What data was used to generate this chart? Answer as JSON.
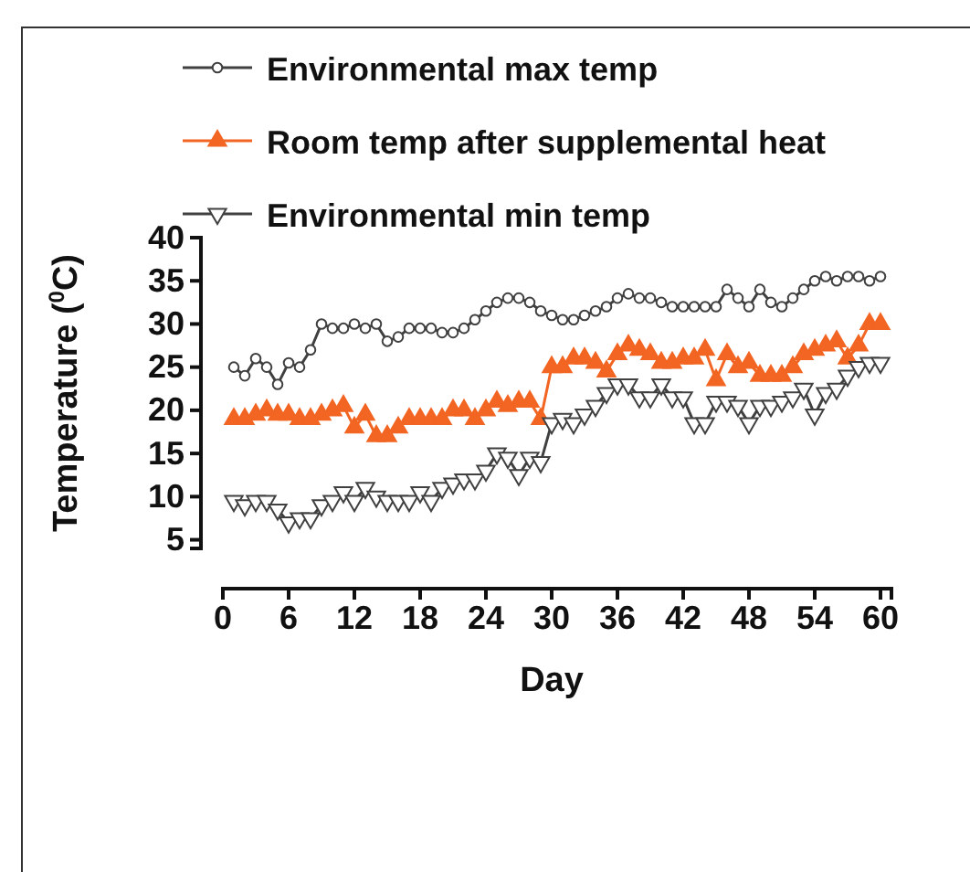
{
  "chart_data": {
    "type": "line",
    "xlabel": "Day",
    "ylabel": "Temperature ($^{0}$C)",
    "xlim": [
      0,
      61
    ],
    "xticks": [
      0,
      6,
      12,
      18,
      24,
      30,
      36,
      42,
      48,
      54,
      60
    ],
    "ylim": [
      4,
      40
    ],
    "yticks": [
      5,
      10,
      15,
      20,
      25,
      30,
      35,
      40
    ],
    "x": [
      1,
      2,
      3,
      4,
      5,
      6,
      7,
      8,
      9,
      10,
      11,
      12,
      13,
      14,
      15,
      16,
      17,
      18,
      19,
      20,
      21,
      22,
      23,
      24,
      25,
      26,
      27,
      28,
      29,
      30,
      31,
      32,
      33,
      34,
      35,
      36,
      37,
      38,
      39,
      40,
      41,
      42,
      43,
      44,
      45,
      46,
      47,
      48,
      49,
      50,
      51,
      52,
      53,
      54,
      55,
      56,
      57,
      58,
      59,
      60
    ],
    "legend": "top",
    "grid": false,
    "series": [
      {
        "name": "Environmental max temp",
        "color": "#404040",
        "marker": "circle",
        "values": [
          25,
          24,
          26,
          25,
          23,
          25.5,
          25,
          27,
          30,
          29.5,
          29.5,
          30,
          29.5,
          30,
          28,
          28.5,
          29.5,
          29.5,
          29.5,
          29,
          29,
          29.5,
          30.5,
          31.5,
          32.5,
          33,
          33,
          32.5,
          31.5,
          31,
          30.5,
          30.5,
          31,
          31.5,
          32,
          33,
          33.5,
          33,
          33,
          32.5,
          32,
          32,
          32,
          32,
          32,
          34,
          33,
          32,
          34,
          32.5,
          32,
          33,
          34,
          35,
          35.5,
          35,
          35.5,
          35.5,
          35,
          35.5
        ]
      },
      {
        "name": "Room temp after supplemental heat",
        "color": "#f26522",
        "marker": "triangle",
        "values": [
          19,
          19,
          19.5,
          20,
          19.5,
          19.5,
          19,
          19,
          19.5,
          20,
          20.5,
          18,
          19.5,
          17,
          17,
          18,
          19,
          19,
          19,
          19,
          20,
          20,
          19,
          20,
          21,
          20.5,
          21,
          21,
          19,
          25,
          25,
          26,
          26,
          25.5,
          24.5,
          26.5,
          27.5,
          27,
          26.5,
          25.5,
          25.5,
          26,
          26,
          27,
          23.5,
          26.5,
          25,
          25.5,
          24,
          24,
          24,
          25,
          26.5,
          27,
          27.5,
          28,
          26,
          27.5,
          30,
          30
        ]
      },
      {
        "name": "Environmental min temp",
        "color": "#404040",
        "marker": "triangle-down",
        "values": [
          9.5,
          9,
          9.5,
          9.5,
          8.5,
          7,
          7.5,
          7.5,
          9,
          9.5,
          10.5,
          9.5,
          11,
          10,
          9.5,
          9.5,
          9.5,
          10.5,
          9.5,
          11,
          11.5,
          12,
          12,
          13,
          15,
          14.5,
          12.5,
          14.5,
          14,
          18.5,
          19,
          18.5,
          19.5,
          20.5,
          22,
          23,
          23,
          21.5,
          21.5,
          23,
          21.5,
          21.5,
          18.5,
          18.5,
          21,
          21,
          20.5,
          18.5,
          20.5,
          20.5,
          21,
          21.5,
          22.5,
          19.5,
          22,
          22.5,
          24,
          25,
          25.5,
          25.5
        ]
      }
    ]
  }
}
